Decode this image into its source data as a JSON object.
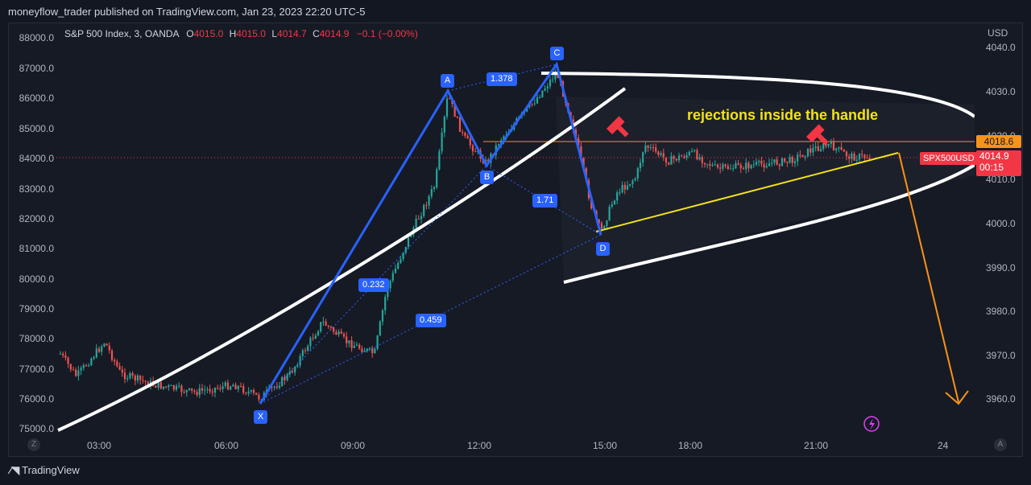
{
  "header": {
    "published_line": "moneyflow_trader published on TradingView.com, Jan 23, 2023 22:20 UTC-5"
  },
  "legend": {
    "symbol": "S&P 500 Index, 3, OANDA",
    "o_label": "O",
    "o_value": "4015.0",
    "h_label": "H",
    "h_value": "4015.0",
    "l_label": "L",
    "l_value": "4014.7",
    "c_label": "C",
    "c_value": "4014.9",
    "change": "−0.1 (−0.00%)"
  },
  "left_axis": [
    "88000.0",
    "87000.0",
    "86000.0",
    "85000.0",
    "84000.0",
    "83000.0",
    "82000.0",
    "81000.0",
    "80000.0",
    "79000.0",
    "78000.0",
    "77000.0",
    "76000.0",
    "75000.0"
  ],
  "right_axis": {
    "currency": "USD",
    "ticks": [
      "4040.0",
      "4030.0",
      "4020.0",
      "4010.0",
      "4000.0",
      "3990.0",
      "3980.0",
      "3970.0",
      "3960.0"
    ],
    "orange_tag": "4018.6",
    "price_tag": "4014.9",
    "countdown": "00:15",
    "symbol_tag": "SPX500USD"
  },
  "time_axis": [
    "03:00",
    "06:00",
    "09:00",
    "12:00",
    "15:00",
    "18:00",
    "21:00",
    "24"
  ],
  "pattern": {
    "points": [
      "X",
      "A",
      "B",
      "C",
      "D"
    ],
    "ratios": [
      "1.378",
      "1.71",
      "0.232",
      "0.459"
    ]
  },
  "annotation": "rejections inside the handle",
  "footer": {
    "brand": "TradingView",
    "zoom_z": "Z",
    "auto_a": "A"
  },
  "colors": {
    "background": "#131722",
    "up": "#26a69a",
    "down": "#ef5350",
    "harmonic": "#2962ff",
    "annotation": "#f2e219",
    "arrow": "#f7931a",
    "price_tag": "#f23645"
  },
  "chart_data": {
    "type": "candlestick",
    "x": [
      "03:00",
      "06:00",
      "09:00",
      "12:00",
      "15:00",
      "18:00",
      "21:00",
      "24"
    ],
    "ylim_right": [
      3955,
      4042
    ],
    "harmonic_xabcd": {
      "X": 3958.5,
      "A": 4030.5,
      "B": 4013.5,
      "C": 4037.5,
      "D": 3997.5
    },
    "horizontal_level": 4018.6,
    "last_price": 4014.9
  }
}
